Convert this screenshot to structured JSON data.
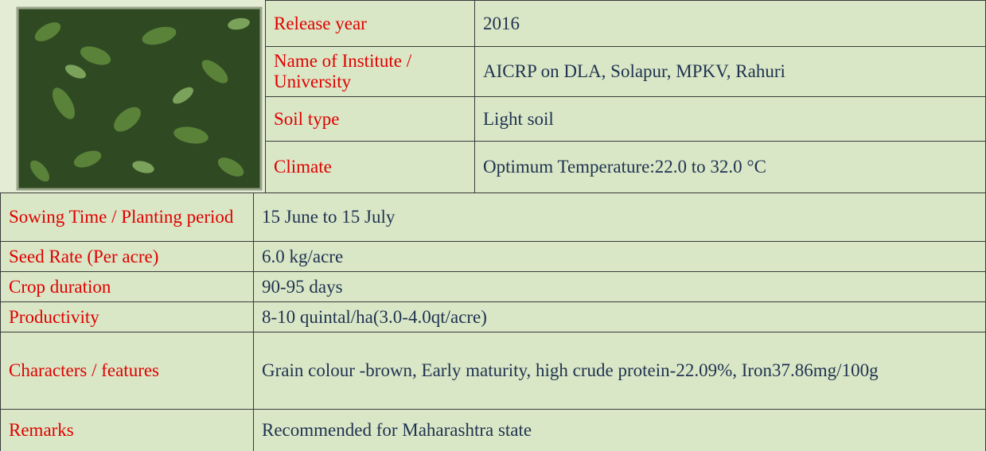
{
  "table": {
    "rows": [
      [
        "Release year",
        "2016"
      ],
      [
        "Name of Institute / University",
        "AICRP on DLA, Solapur, MPKV, Rahuri"
      ],
      [
        "Soil type",
        "Light soil"
      ],
      [
        "Climate",
        "Optimum Temperature:22.0 to 32.0 °C"
      ],
      [
        "Sowing Time / Planting period",
        "15 June to 15 July"
      ],
      [
        "Seed Rate (Per acre)",
        "6.0 kg/acre"
      ],
      [
        "Crop duration",
        "90-95 days"
      ],
      [
        "Productivity",
        "8-10 quintal/ha(3.0-4.0qt/acre)"
      ],
      [
        "Characters / features",
        "Grain colour -brown, Early maturity, high crude protein-22.09%, Iron37.86mg/100g"
      ],
      [
        "Remarks",
        "Recommended for Maharashtra state"
      ]
    ]
  }
}
